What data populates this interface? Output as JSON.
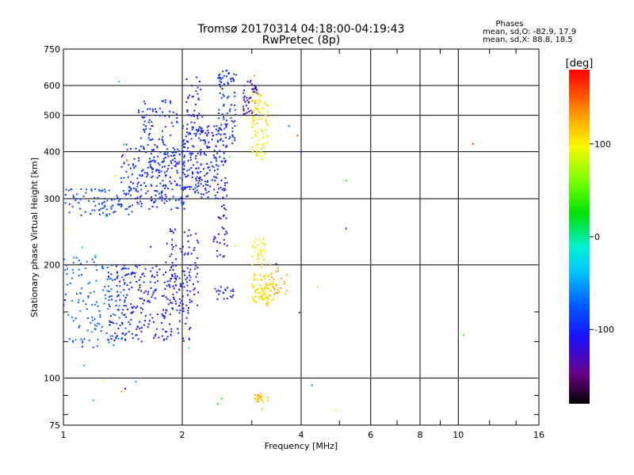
{
  "chart_data": {
    "type": "scatter",
    "title": "Tromsø 20170314 04:18:00-04:19:43",
    "subtitle": "RwPretec (8p)",
    "xlabel": "Frequency [MHz]",
    "ylabel": "Stationary phase Virtual Height [km]",
    "x_scale": "log",
    "y_scale": "log",
    "xlim": [
      1,
      16
    ],
    "ylim": [
      75,
      750
    ],
    "x_ticks": [
      1,
      2,
      4,
      6,
      8,
      10,
      16
    ],
    "x_tick_labels": [
      "1",
      "2",
      "4",
      "6",
      "8",
      "10",
      "16"
    ],
    "x_minor_ticks": [
      3,
      5,
      7,
      9,
      12,
      14
    ],
    "y_ticks": [
      75,
      100,
      200,
      300,
      400,
      500,
      600,
      750
    ],
    "y_tick_labels": [
      "75",
      "100",
      "200",
      "300",
      "400",
      "500",
      "600",
      "750"
    ],
    "y_minor_ticks": [
      80,
      90,
      125,
      150
    ],
    "grid": true,
    "phases": {
      "title": "Phases",
      "line1": "mean, sd,O: -82.9, 17.9",
      "line2": "mean, sd,X:  88.8, 18.5"
    },
    "colorbar": {
      "label": "[deg]",
      "range": [
        -180,
        180
      ],
      "ticks": [
        100,
        0,
        -100
      ],
      "tick_labels": [
        "100",
        "0",
        "-100"
      ]
    },
    "clusters": [
      {
        "f": [
          1.0,
          1.5
        ],
        "h": [
          270,
          320
        ],
        "phase": [
          -90,
          -75
        ],
        "n": 90
      },
      {
        "f": [
          1.4,
          2.05
        ],
        "h": [
          280,
          420
        ],
        "phase": [
          -110,
          -85
        ],
        "n": 200
      },
      {
        "f": [
          1.55,
          1.95
        ],
        "h": [
          350,
          560
        ],
        "phase": [
          -105,
          -85
        ],
        "n": 110
      },
      {
        "f": [
          2.0,
          2.6
        ],
        "h": [
          300,
          470
        ],
        "phase": [
          -115,
          -85
        ],
        "n": 220
      },
      {
        "f": [
          2.45,
          2.75
        ],
        "h": [
          420,
          660
        ],
        "phase": [
          -105,
          -85
        ],
        "n": 80
      },
      {
        "f": [
          2.05,
          2.25
        ],
        "h": [
          450,
          650
        ],
        "phase": [
          -120,
          -95
        ],
        "n": 40
      },
      {
        "f": [
          2.85,
          3.12
        ],
        "h": [
          500,
          620
        ],
        "phase": [
          -140,
          -120
        ],
        "n": 45
      },
      {
        "f": [
          3.0,
          3.3
        ],
        "h": [
          380,
          580
        ],
        "phase": [
          85,
          115
        ],
        "n": 90
      },
      {
        "f": [
          1.0,
          1.45
        ],
        "h": [
          120,
          210
        ],
        "phase": [
          -80,
          -55
        ],
        "n": 140
      },
      {
        "f": [
          1.3,
          2.1
        ],
        "h": [
          125,
          200
        ],
        "phase": [
          -115,
          -90
        ],
        "n": 260
      },
      {
        "f": [
          1.8,
          2.2
        ],
        "h": [
          150,
          250
        ],
        "phase": [
          -125,
          -100
        ],
        "n": 90
      },
      {
        "f": [
          2.4,
          2.6
        ],
        "h": [
          210,
          290
        ],
        "phase": [
          -130,
          -110
        ],
        "n": 30
      },
      {
        "f": [
          2.4,
          2.7
        ],
        "h": [
          160,
          175
        ],
        "phase": [
          -110,
          -90
        ],
        "n": 20
      },
      {
        "f": [
          3.0,
          3.4
        ],
        "h": [
          155,
          190
        ],
        "phase": [
          95,
          120
        ],
        "n": 90
      },
      {
        "f": [
          3.0,
          3.25
        ],
        "h": [
          195,
          235
        ],
        "phase": [
          85,
          110
        ],
        "n": 30
      },
      {
        "f": [
          3.3,
          3.7
        ],
        "h": [
          165,
          200
        ],
        "phase": [
          115,
          135
        ],
        "n": 25
      },
      {
        "f": [
          3.05,
          3.3
        ],
        "h": [
          86,
          92
        ],
        "phase": [
          105,
          130
        ],
        "n": 25
      },
      {
        "f": [
          1.0,
          4.5
        ],
        "h": [
          80,
          650
        ],
        "phase": [
          -180,
          180
        ],
        "n": 30
      }
    ],
    "points": [
      {
        "f": 4.0,
        "h": 400,
        "phase": -100
      },
      {
        "f": 5.2,
        "h": 250,
        "phase": -115
      },
      {
        "f": 5.2,
        "h": 335,
        "phase": 40
      },
      {
        "f": 10.3,
        "h": 130,
        "phase": 45
      },
      {
        "f": 10.9,
        "h": 420,
        "phase": 160
      },
      {
        "f": 4.4,
        "h": 175,
        "phase": 110
      },
      {
        "f": 4.9,
        "h": 82,
        "phase": 90
      }
    ]
  }
}
